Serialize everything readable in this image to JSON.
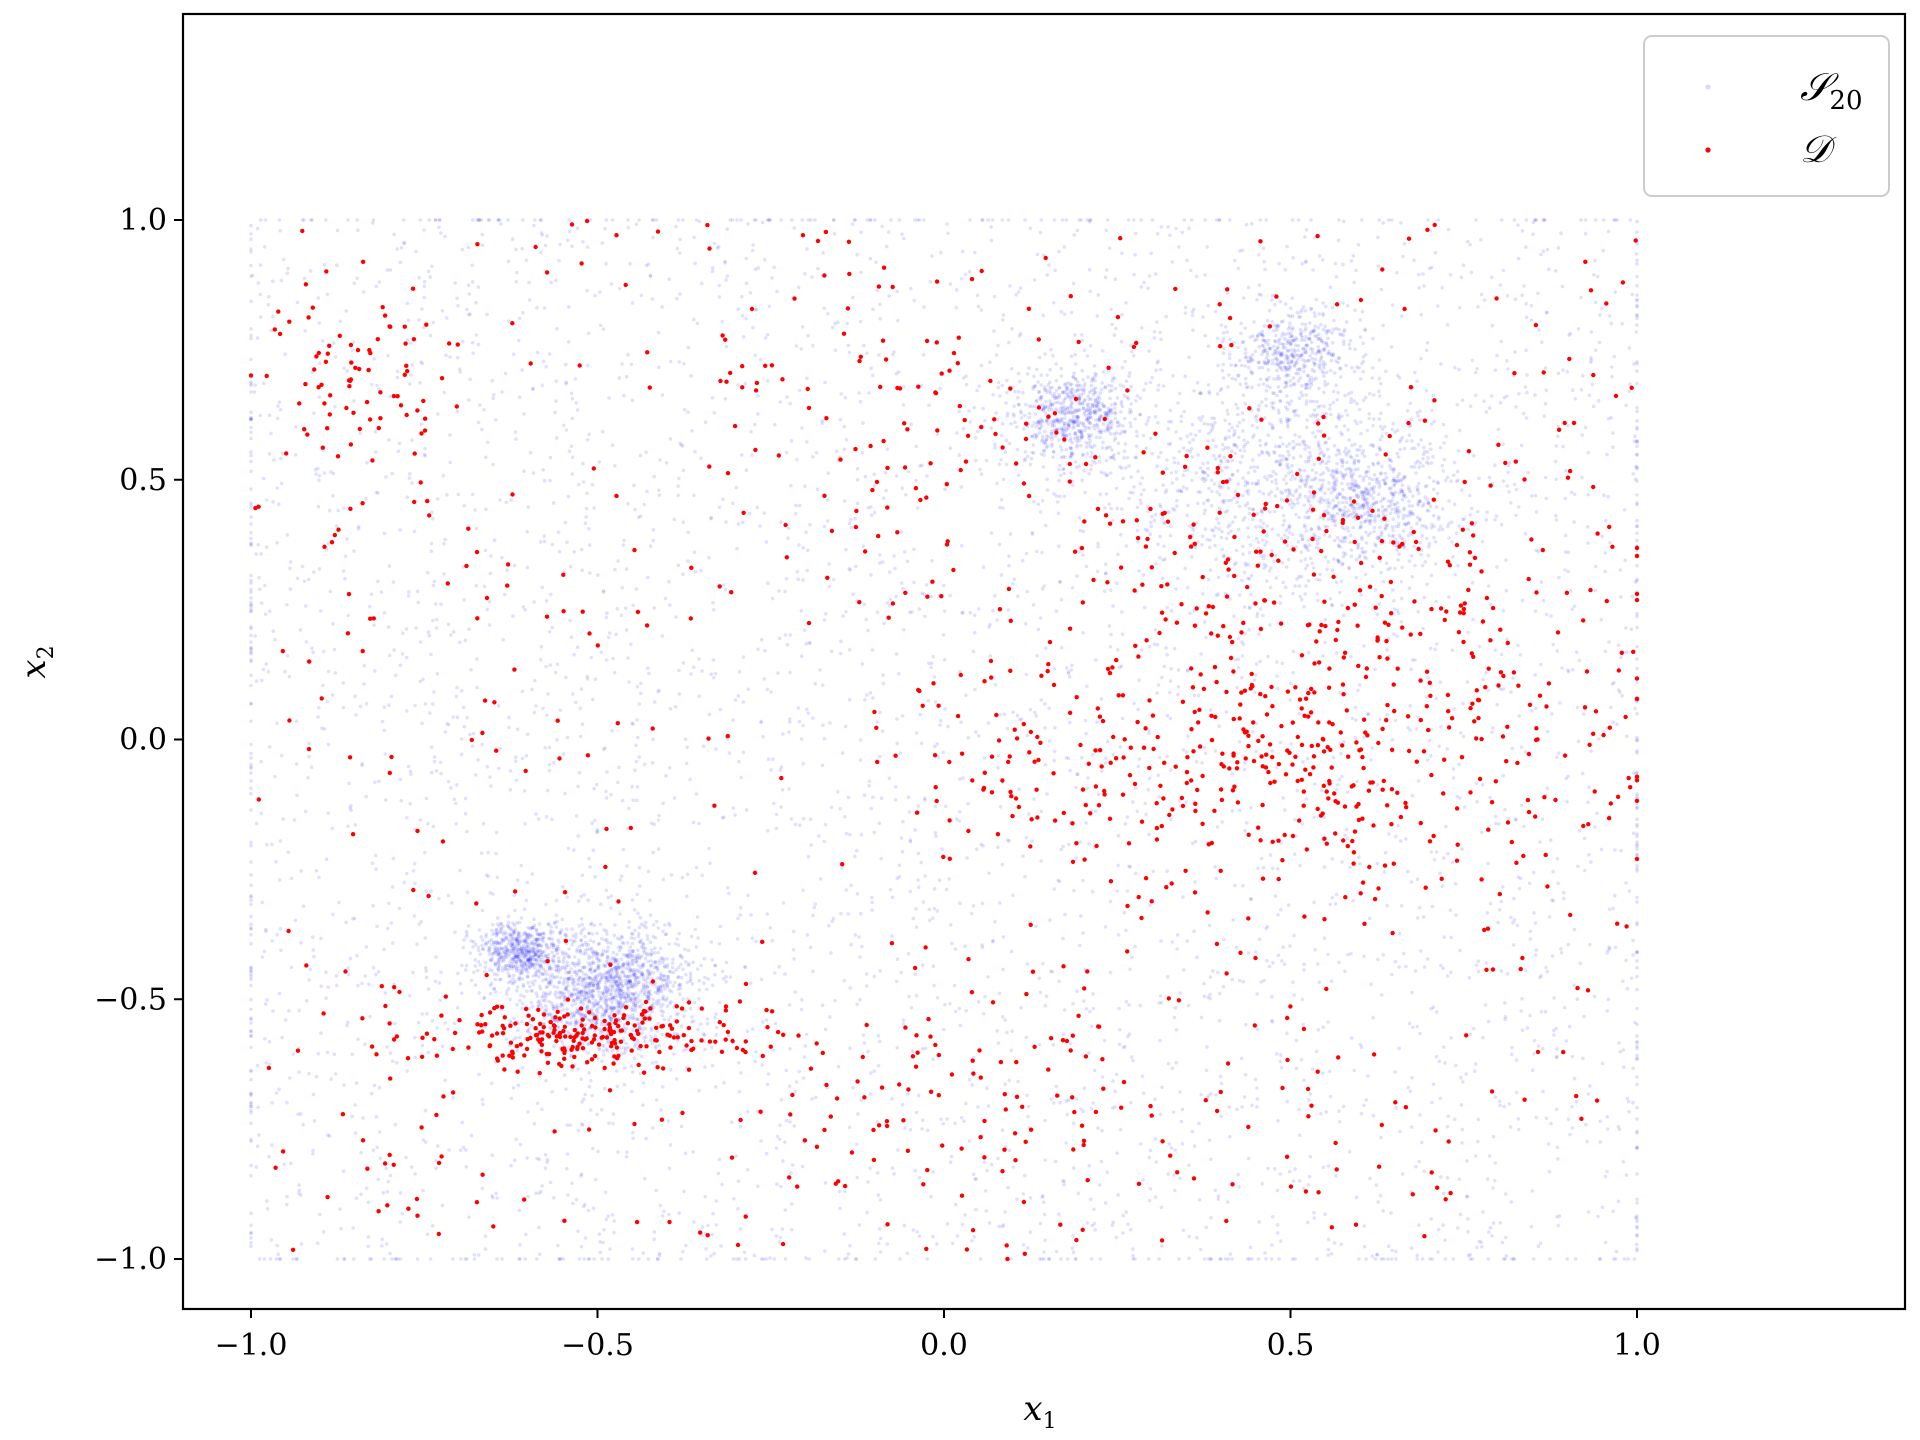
{
  "chart_data": {
    "type": "scatter",
    "title": "",
    "xlabel": "x",
    "xlabel_sub": "1",
    "ylabel": "x",
    "ylabel_sub": "2",
    "xlim": [
      -1.1,
      1.4
    ],
    "ylim": [
      -1.1,
      1.4
    ],
    "xticks": [
      -1.0,
      -0.5,
      0.0,
      0.5,
      1.0
    ],
    "xtick_labels": [
      "−1.0",
      "−0.5",
      "0.0",
      "0.5",
      "1.0"
    ],
    "yticks": [
      -1.0,
      -0.5,
      0.0,
      0.5,
      1.0
    ],
    "ytick_labels": [
      "−1.0",
      "−0.5",
      "0.0",
      "0.5",
      "1.0"
    ],
    "grid": false,
    "legend": {
      "placement": "top-right",
      "entries": [
        {
          "label": "𝒮",
          "sub": "20",
          "color": "#0000ff"
        },
        {
          "label": "𝒟",
          "sub": "",
          "color": "#ff0000"
        }
      ]
    },
    "series": [
      {
        "name": "S20",
        "color": "#0000ff",
        "opacity": 0.12,
        "description_kind": "dense-sample",
        "domain": {
          "x": [
            -1.0,
            1.0
          ],
          "y": [
            -1.0,
            1.0
          ]
        },
        "clusters": [
          {
            "x": -0.61,
            "y": -0.41,
            "spread": 0.03,
            "weight": 0.06
          },
          {
            "x": -0.5,
            "y": -0.5,
            "spread": 0.06,
            "weight": 0.09
          },
          {
            "x": -0.45,
            "y": -0.45,
            "spread": 0.05,
            "weight": 0.05
          },
          {
            "x": 0.19,
            "y": 0.62,
            "spread": 0.05,
            "weight": 0.07
          },
          {
            "x": 0.5,
            "y": 0.75,
            "spread": 0.04,
            "weight": 0.04
          },
          {
            "x": 0.5,
            "y": 0.5,
            "spread": 0.12,
            "weight": 0.12
          },
          {
            "x": 0.62,
            "y": 0.46,
            "spread": 0.05,
            "weight": 0.04
          }
        ]
      },
      {
        "name": "D",
        "color": "#ff0000",
        "opacity": 1.0,
        "description_kind": "samples",
        "clusters": [
          {
            "x": -0.52,
            "y": -0.57,
            "spread_x": 0.12,
            "spread_y": 0.03,
            "weight": 0.16
          },
          {
            "x": 0.45,
            "y": -0.05,
            "spread_x": 0.25,
            "spread_y": 0.12,
            "weight": 0.2
          },
          {
            "x": 0.55,
            "y": 0.25,
            "spread_x": 0.25,
            "spread_y": 0.15,
            "weight": 0.15
          },
          {
            "x": -0.85,
            "y": 0.7,
            "spread_x": 0.06,
            "spread_y": 0.08,
            "weight": 0.04
          },
          {
            "x": -0.05,
            "y": 0.6,
            "spread_x": 0.15,
            "spread_y": 0.12,
            "weight": 0.05
          },
          {
            "x": 0.0,
            "y": -0.7,
            "spread_x": 0.2,
            "spread_y": 0.1,
            "weight": 0.06
          }
        ],
        "uniform_fraction": 0.34
      }
    ]
  }
}
